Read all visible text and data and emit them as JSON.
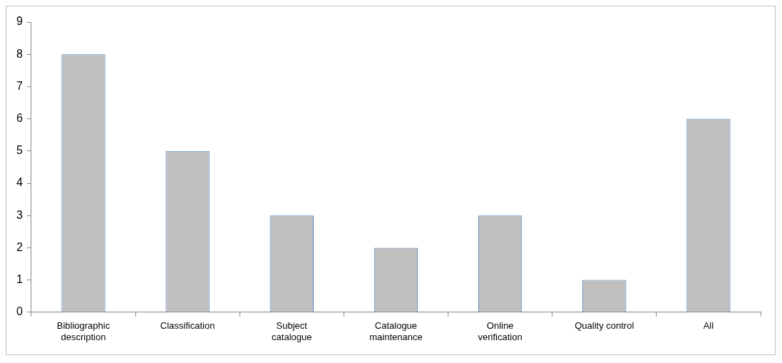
{
  "chart_data": {
    "type": "bar",
    "categories": [
      "Bibliographic description",
      "Classification",
      "Subject catalogue",
      "Catalogue maintenance",
      "Online verification",
      "Quality control",
      "All"
    ],
    "values": [
      8,
      5,
      3,
      2,
      3,
      1,
      6
    ],
    "color": "#bfbfbf",
    "ylim": [
      0,
      9
    ],
    "yticks": [
      0,
      1,
      2,
      3,
      4,
      5,
      6,
      7,
      8,
      9
    ],
    "grid": false,
    "legend": false
  }
}
